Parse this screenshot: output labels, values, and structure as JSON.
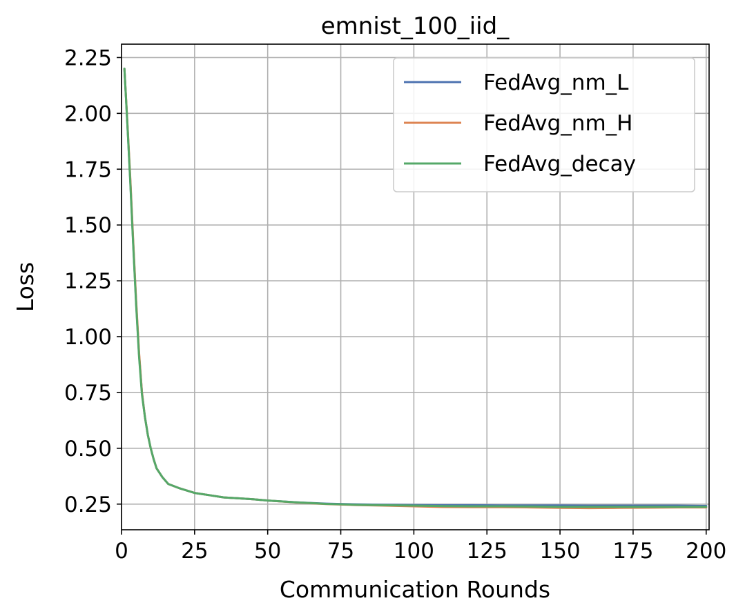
{
  "chart_data": {
    "type": "line",
    "title": "emnist_100_iid_",
    "xlabel": "Communication Rounds",
    "ylabel": "Loss",
    "xlim": [
      0,
      201
    ],
    "ylim": [
      0.135,
      2.31
    ],
    "xticks": [
      0,
      25,
      50,
      75,
      100,
      125,
      150,
      175,
      200
    ],
    "yticks": [
      0.25,
      0.5,
      0.75,
      1.0,
      1.25,
      1.5,
      1.75,
      2.0,
      2.25
    ],
    "xtick_labels": [
      "0",
      "25",
      "50",
      "75",
      "100",
      "125",
      "150",
      "175",
      "200"
    ],
    "ytick_labels": [
      "0.25",
      "0.50",
      "0.75",
      "1.00",
      "1.25",
      "1.50",
      "1.75",
      "2.00",
      "2.25"
    ],
    "grid": true,
    "legend_position": "top-right",
    "series": [
      {
        "name": "FedAvg_nm_L",
        "color": "#4c72b0",
        "x": [
          1,
          2,
          3,
          4,
          5,
          6,
          7,
          8,
          9,
          10,
          11,
          12,
          14,
          16,
          18,
          20,
          25,
          30,
          35,
          40,
          45,
          50,
          60,
          70,
          80,
          90,
          100,
          110,
          120,
          130,
          140,
          150,
          160,
          170,
          180,
          190,
          200
        ],
        "y": [
          2.2,
          1.95,
          1.7,
          1.42,
          1.15,
          0.92,
          0.75,
          0.64,
          0.56,
          0.5,
          0.45,
          0.41,
          0.37,
          0.34,
          0.33,
          0.32,
          0.3,
          0.29,
          0.28,
          0.276,
          0.272,
          0.266,
          0.258,
          0.252,
          0.249,
          0.247,
          0.246,
          0.245,
          0.245,
          0.244,
          0.244,
          0.244,
          0.243,
          0.243,
          0.243,
          0.243,
          0.242
        ]
      },
      {
        "name": "FedAvg_nm_H",
        "color": "#dd8452",
        "x": [
          1,
          2,
          3,
          4,
          5,
          6,
          7,
          8,
          9,
          10,
          11,
          12,
          14,
          16,
          18,
          20,
          25,
          30,
          35,
          40,
          45,
          50,
          60,
          70,
          80,
          90,
          100,
          110,
          120,
          130,
          140,
          150,
          160,
          170,
          180,
          190,
          200
        ],
        "y": [
          2.2,
          1.96,
          1.71,
          1.43,
          1.16,
          0.93,
          0.75,
          0.64,
          0.56,
          0.5,
          0.45,
          0.41,
          0.37,
          0.34,
          0.33,
          0.32,
          0.3,
          0.29,
          0.28,
          0.276,
          0.272,
          0.266,
          0.257,
          0.25,
          0.246,
          0.243,
          0.24,
          0.237,
          0.236,
          0.236,
          0.235,
          0.233,
          0.232,
          0.233,
          0.234,
          0.235,
          0.235
        ]
      },
      {
        "name": "FedAvg_decay",
        "color": "#55a868",
        "x": [
          1,
          2,
          3,
          4,
          5,
          6,
          7,
          8,
          9,
          10,
          11,
          12,
          14,
          16,
          18,
          20,
          25,
          30,
          35,
          40,
          45,
          50,
          60,
          70,
          80,
          90,
          100,
          110,
          120,
          130,
          140,
          150,
          160,
          170,
          180,
          190,
          200
        ],
        "y": [
          2.2,
          1.95,
          1.69,
          1.41,
          1.14,
          0.91,
          0.74,
          0.64,
          0.56,
          0.5,
          0.45,
          0.41,
          0.37,
          0.34,
          0.33,
          0.32,
          0.3,
          0.29,
          0.28,
          0.276,
          0.272,
          0.266,
          0.258,
          0.251,
          0.247,
          0.245,
          0.243,
          0.241,
          0.24,
          0.24,
          0.239,
          0.238,
          0.238,
          0.238,
          0.238,
          0.238,
          0.238
        ]
      }
    ]
  }
}
